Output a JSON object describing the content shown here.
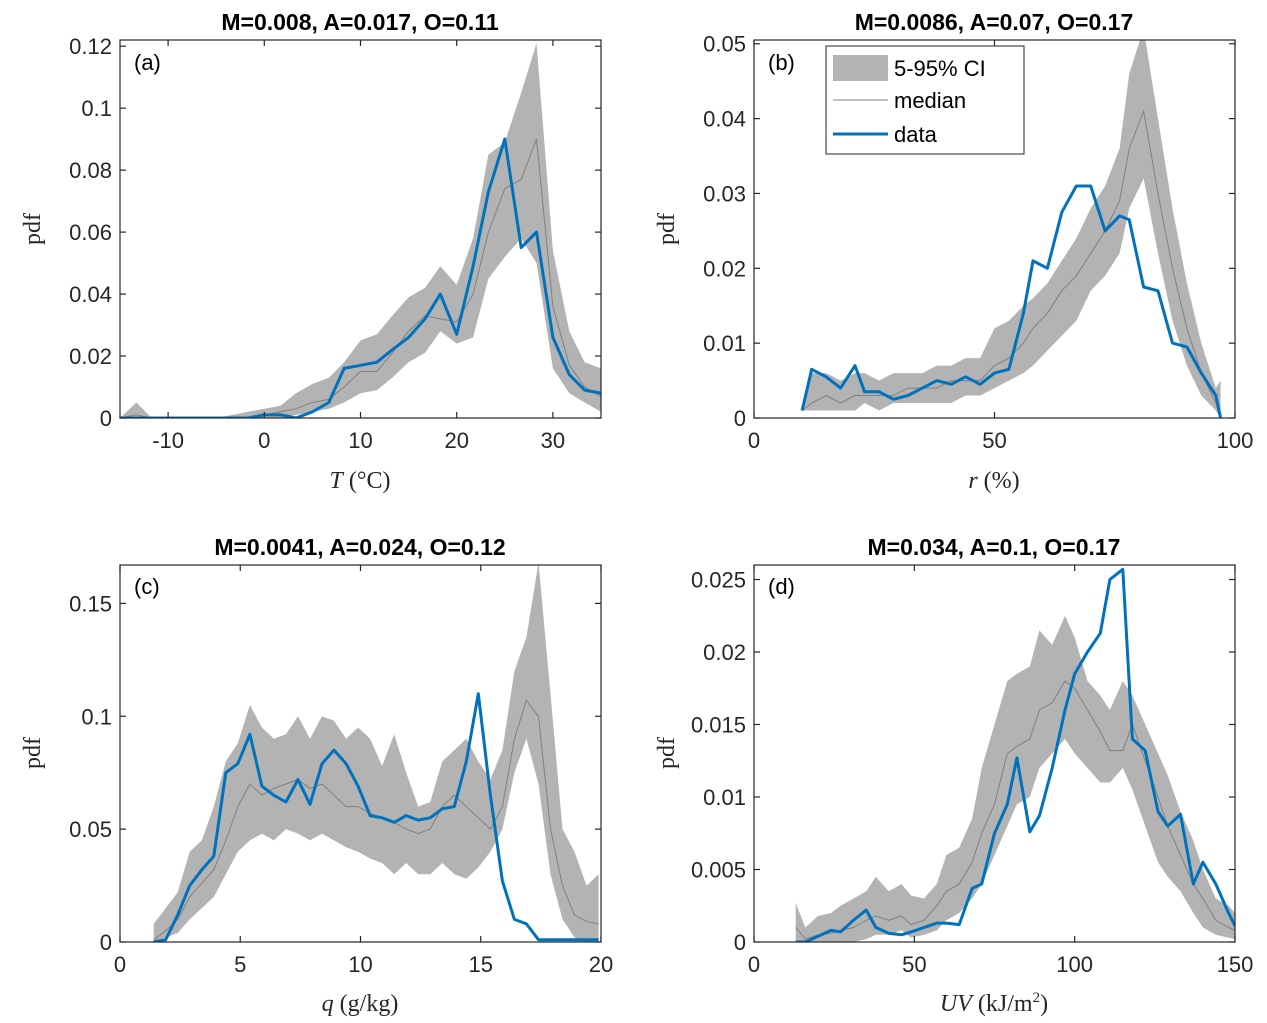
{
  "legend": {
    "ci_label": "5-95% CI",
    "median_label": "median",
    "data_label": "data",
    "placement": "top-left of panel (b)"
  },
  "colors": {
    "ci_band": "#b3b3b3",
    "median": "#808080",
    "data": "#0072bd",
    "axes": "#262626"
  },
  "chart_data": [
    {
      "type": "area",
      "id": "a",
      "panel_label": "(a)",
      "title": "M=0.008, A=0.017, O=0.11",
      "xlabel": "T (°C)",
      "ylabel": "pdf",
      "xlim": [
        -15,
        35
      ],
      "ylim": [
        0,
        0.122
      ],
      "xticks": [
        -10,
        0,
        10,
        20,
        30
      ],
      "xtick_labels": [
        "-10",
        "0",
        "10",
        "20",
        "30"
      ],
      "yticks": [
        0,
        0.02,
        0.04,
        0.06,
        0.08,
        0.1,
        0.12
      ],
      "ytick_labels": [
        "0",
        "0.02",
        "0.04",
        "0.06",
        "0.08",
        "0.1",
        "0.12"
      ],
      "grid": false,
      "x": [
        -15,
        -13.3,
        -11.7,
        -10,
        -8.3,
        -6.7,
        -5,
        -3.3,
        -1.7,
        0,
        1.7,
        3.3,
        5,
        6.7,
        8.3,
        10,
        11.7,
        13.3,
        15,
        16.7,
        18.3,
        20,
        21.7,
        23.3,
        25,
        26.7,
        28.3,
        30,
        31.7,
        33.3,
        35
      ],
      "ci_upper": [
        0,
        0.005,
        0,
        0,
        0,
        0,
        0,
        0.001,
        0.002,
        0.003,
        0.004,
        0.008,
        0.011,
        0.013,
        0.018,
        0.025,
        0.027,
        0.033,
        0.039,
        0.042,
        0.049,
        0.043,
        0.058,
        0.085,
        0.089,
        0.105,
        0.121,
        0.054,
        0.028,
        0.018,
        0.016
      ],
      "ci_lower": [
        0,
        0,
        0,
        0,
        0,
        0,
        0,
        0,
        0,
        0,
        0,
        0.001,
        0.002,
        0.003,
        0.005,
        0.008,
        0.009,
        0.013,
        0.018,
        0.021,
        0.028,
        0.024,
        0.026,
        0.045,
        0.052,
        0.058,
        0.05,
        0.016,
        0.008,
        0.005,
        0.002
      ],
      "median": [
        0,
        0.001,
        0,
        0,
        0,
        0,
        0,
        0,
        0,
        0.001,
        0.002,
        0.003,
        0.005,
        0.006,
        0.01,
        0.015,
        0.015,
        0.021,
        0.028,
        0.033,
        0.032,
        0.031,
        0.04,
        0.06,
        0.074,
        0.077,
        0.09,
        0.036,
        0.017,
        0.01,
        0.007
      ],
      "data": [
        0,
        0,
        0,
        0,
        0,
        0,
        0,
        0,
        0,
        0.001,
        0.001,
        0,
        0.002,
        0.005,
        0.016,
        0.017,
        0.018,
        0.022,
        0.026,
        0.032,
        0.04,
        0.027,
        0.049,
        0.073,
        0.09,
        0.055,
        0.06,
        0.026,
        0.014,
        0.009,
        0.008
      ]
    },
    {
      "type": "area",
      "id": "b",
      "panel_label": "(b)",
      "title": "M=0.0086, A=0.07, O=0.17",
      "xlabel": "r (%)",
      "ylabel": "pdf",
      "xlim": [
        0,
        100
      ],
      "ylim": [
        0,
        0.0505
      ],
      "xticks": [
        0,
        50,
        100
      ],
      "xtick_labels": [
        "0",
        "50",
        "100"
      ],
      "yticks": [
        0,
        0.01,
        0.02,
        0.03,
        0.04,
        0.05
      ],
      "ytick_labels": [
        "0",
        "0.01",
        "0.02",
        "0.03",
        "0.04",
        "0.05"
      ],
      "grid": false,
      "x": [
        10,
        12,
        15,
        18,
        21,
        23,
        26,
        29,
        32,
        35,
        38,
        41,
        44,
        47,
        50,
        53,
        56,
        58,
        61,
        64,
        67,
        70,
        73,
        76,
        78,
        81,
        84,
        87,
        90,
        93,
        96,
        97
      ],
      "ci_upper": [
        0.001,
        0.006,
        0.006,
        0.005,
        0.006,
        0.006,
        0.005,
        0.006,
        0.006,
        0.006,
        0.007,
        0.007,
        0.008,
        0.008,
        0.012,
        0.013,
        0.015,
        0.016,
        0.018,
        0.021,
        0.024,
        0.028,
        0.031,
        0.036,
        0.046,
        0.052,
        0.04,
        0.028,
        0.018,
        0.01,
        0.004,
        0.005
      ],
      "ci_lower": [
        0.001,
        0.001,
        0.001,
        0.001,
        0.001,
        0.002,
        0.001,
        0.002,
        0.002,
        0.002,
        0.002,
        0.002,
        0.003,
        0.003,
        0.004,
        0.005,
        0.006,
        0.007,
        0.009,
        0.011,
        0.013,
        0.017,
        0.019,
        0.022,
        0.028,
        0.032,
        0.022,
        0.013,
        0.007,
        0.003,
        0.001,
        0
      ],
      "median": [
        0.001,
        0.002,
        0.003,
        0.002,
        0.003,
        0.003,
        0.003,
        0.003,
        0.004,
        0.004,
        0.004,
        0.005,
        0.005,
        0.005,
        0.007,
        0.008,
        0.01,
        0.012,
        0.014,
        0.017,
        0.019,
        0.022,
        0.025,
        0.029,
        0.036,
        0.041,
        0.03,
        0.02,
        0.012,
        0.006,
        0.002,
        0
      ],
      "data": [
        0.001,
        0.0065,
        0.0055,
        0.004,
        0.007,
        0.0035,
        0.0035,
        0.0025,
        0.003,
        0.004,
        0.005,
        0.0045,
        0.0055,
        0.0045,
        0.006,
        0.0065,
        0.014,
        0.021,
        0.02,
        0.0275,
        0.031,
        0.031,
        0.025,
        0.027,
        0.0265,
        0.0175,
        0.017,
        0.01,
        0.0095,
        0.006,
        0.003,
        0
      ]
    },
    {
      "type": "area",
      "id": "c",
      "panel_label": "(c)",
      "title": "M=0.0041, A=0.024, O=0.12",
      "xlabel": "q (g/kg)",
      "ylabel": "pdf",
      "xlim": [
        0,
        20
      ],
      "ylim": [
        0,
        0.167
      ],
      "xticks": [
        0,
        5,
        10,
        15,
        20
      ],
      "xtick_labels": [
        "0",
        "5",
        "10",
        "15",
        "20"
      ],
      "yticks": [
        0,
        0.05,
        0.1,
        0.15
      ],
      "ytick_labels": [
        "0",
        "0.05",
        "0.1",
        "0.15"
      ],
      "grid": false,
      "x": [
        1.4,
        1.9,
        2.4,
        2.9,
        3.4,
        3.9,
        4.4,
        4.9,
        5.4,
        5.9,
        6.4,
        6.9,
        7.4,
        7.9,
        8.4,
        8.9,
        9.4,
        9.9,
        10.4,
        10.9,
        11.4,
        11.9,
        12.4,
        12.9,
        13.4,
        13.9,
        14.4,
        14.9,
        15.4,
        15.9,
        16.4,
        16.9,
        17.4,
        17.9,
        18.4,
        18.9,
        19.4,
        19.9
      ],
      "ci_upper": [
        0.008,
        0.015,
        0.022,
        0.04,
        0.045,
        0.06,
        0.08,
        0.088,
        0.105,
        0.095,
        0.09,
        0.092,
        0.1,
        0.09,
        0.1,
        0.098,
        0.09,
        0.095,
        0.09,
        0.078,
        0.092,
        0.075,
        0.06,
        0.062,
        0.08,
        0.085,
        0.09,
        0.08,
        0.072,
        0.085,
        0.12,
        0.135,
        0.168,
        0.11,
        0.05,
        0.04,
        0.025,
        0.03
      ],
      "ci_lower": [
        0,
        0.002,
        0.004,
        0.01,
        0.015,
        0.02,
        0.03,
        0.04,
        0.045,
        0.048,
        0.045,
        0.05,
        0.048,
        0.045,
        0.048,
        0.045,
        0.042,
        0.04,
        0.037,
        0.035,
        0.03,
        0.035,
        0.03,
        0.03,
        0.035,
        0.03,
        0.028,
        0.033,
        0.04,
        0.05,
        0.075,
        0.09,
        0.07,
        0.03,
        0.01,
        0.002,
        0,
        0.001
      ],
      "median": [
        0.001,
        0.005,
        0.01,
        0.02,
        0.026,
        0.032,
        0.045,
        0.06,
        0.07,
        0.065,
        0.068,
        0.07,
        0.072,
        0.068,
        0.07,
        0.065,
        0.06,
        0.06,
        0.057,
        0.055,
        0.053,
        0.05,
        0.048,
        0.05,
        0.06,
        0.065,
        0.06,
        0.055,
        0.05,
        0.06,
        0.09,
        0.107,
        0.1,
        0.05,
        0.025,
        0.012,
        0.009,
        0.008
      ],
      "data": [
        0,
        0.001,
        0.012,
        0.025,
        0.032,
        0.038,
        0.075,
        0.079,
        0.092,
        0.069,
        0.065,
        0.062,
        0.072,
        0.061,
        0.079,
        0.085,
        0.079,
        0.069,
        0.056,
        0.055,
        0.053,
        0.056,
        0.054,
        0.055,
        0.059,
        0.06,
        0.08,
        0.11,
        0.065,
        0.027,
        0.01,
        0.008,
        0.001,
        0.001,
        0.001,
        0.001,
        0.001,
        0.001
      ]
    },
    {
      "type": "area",
      "id": "d",
      "panel_label": "(d)",
      "title": "M=0.034, A=0.1, O=0.17",
      "xlabel": "UV (kJ/m²)",
      "ylabel": "pdf",
      "xlim": [
        0,
        150
      ],
      "ylim": [
        0,
        0.026
      ],
      "xticks": [
        0,
        50,
        100,
        150
      ],
      "xtick_labels": [
        "0",
        "50",
        "100",
        "150"
      ],
      "yticks": [
        0,
        0.005,
        0.01,
        0.015,
        0.02,
        0.025
      ],
      "ytick_labels": [
        "0",
        "0.005",
        "0.01",
        "0.015",
        "0.02",
        "0.025"
      ],
      "grid": false,
      "x": [
        13,
        16,
        20,
        24,
        27,
        31,
        35,
        38,
        42,
        46,
        49,
        53,
        57,
        60,
        64,
        68,
        71,
        75,
        79,
        82,
        86,
        89,
        93,
        97,
        100,
        104,
        108,
        111,
        115,
        118,
        122,
        126,
        129,
        133,
        137,
        140,
        144,
        148,
        150
      ],
      "ci_upper": [
        0.0027,
        0.001,
        0.0018,
        0.002,
        0.0025,
        0.003,
        0.0035,
        0.0045,
        0.0035,
        0.004,
        0.0032,
        0.003,
        0.004,
        0.006,
        0.0065,
        0.0085,
        0.012,
        0.015,
        0.018,
        0.0185,
        0.019,
        0.0215,
        0.0205,
        0.0225,
        0.021,
        0.018,
        0.017,
        0.016,
        0.018,
        0.017,
        0.015,
        0.013,
        0.0115,
        0.009,
        0.007,
        0.005,
        0.003,
        0.0025,
        0.002
      ],
      "ci_lower": [
        0,
        0,
        0,
        0,
        0,
        0,
        0.0002,
        0.0005,
        0.0005,
        0.0008,
        0.0003,
        0.0005,
        0.0008,
        0.0015,
        0.002,
        0.003,
        0.004,
        0.006,
        0.008,
        0.0095,
        0.01,
        0.012,
        0.013,
        0.014,
        0.013,
        0.012,
        0.011,
        0.011,
        0.012,
        0.0105,
        0.008,
        0.0055,
        0.0045,
        0.0035,
        0.002,
        0.001,
        0.0005,
        0.0003,
        0.0002
      ],
      "median": [
        0.001,
        0.0002,
        0.0005,
        0.0006,
        0.0008,
        0.001,
        0.0015,
        0.0018,
        0.0015,
        0.0018,
        0.0012,
        0.0015,
        0.0025,
        0.0035,
        0.004,
        0.0055,
        0.0075,
        0.0095,
        0.013,
        0.0135,
        0.014,
        0.016,
        0.0165,
        0.018,
        0.0175,
        0.016,
        0.0145,
        0.0132,
        0.0132,
        0.015,
        0.0125,
        0.01,
        0.008,
        0.006,
        0.004,
        0.003,
        0.0015,
        0.001,
        0.0008
      ],
      "data": [
        0,
        0,
        0.0004,
        0.0008,
        0.0007,
        0.0015,
        0.0022,
        0.001,
        0.0006,
        0.0005,
        0.0007,
        0.001,
        0.0013,
        0.0013,
        0.0012,
        0.0037,
        0.004,
        0.0075,
        0.0095,
        0.0127,
        0.0076,
        0.0087,
        0.012,
        0.016,
        0.0185,
        0.02,
        0.0213,
        0.025,
        0.0257,
        0.014,
        0.0132,
        0.009,
        0.008,
        0.0088,
        0.004,
        0.0055,
        0.004,
        0.002,
        0.0011
      ]
    }
  ]
}
